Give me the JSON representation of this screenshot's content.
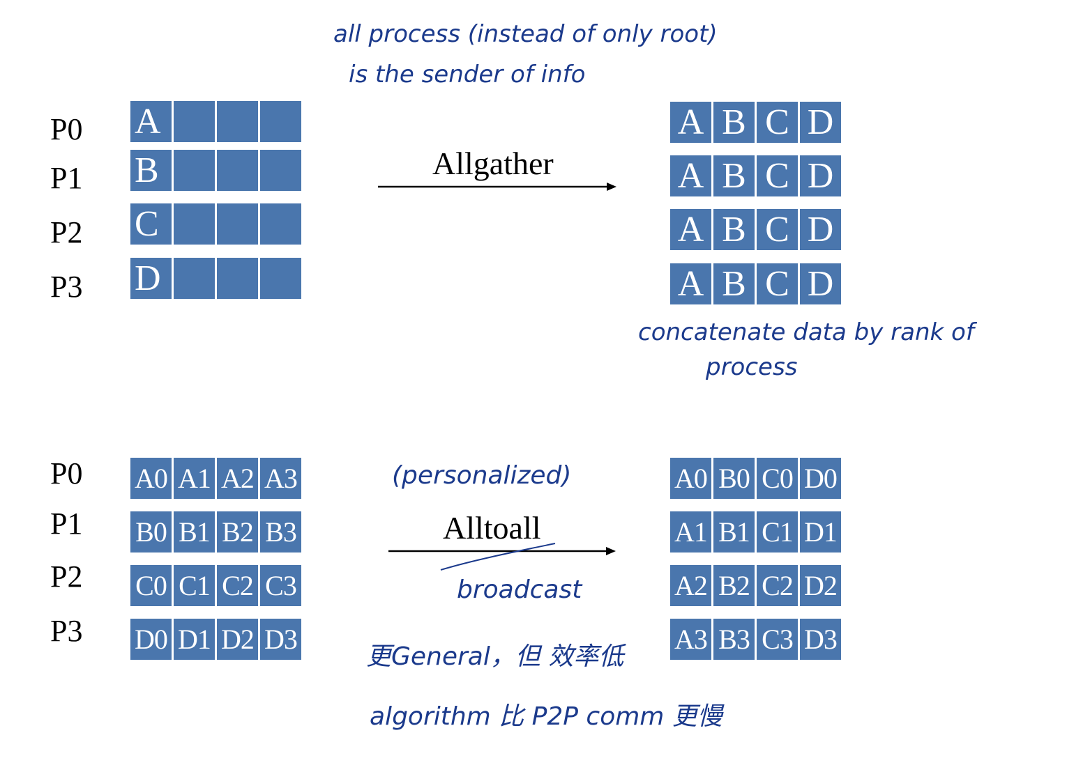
{
  "processes": [
    "P0",
    "P1",
    "P2",
    "P3"
  ],
  "allgather": {
    "label": "Allgather",
    "input": [
      [
        "A",
        "",
        "",
        ""
      ],
      [
        "B",
        "",
        "",
        ""
      ],
      [
        "C",
        "",
        "",
        ""
      ],
      [
        "D",
        "",
        "",
        ""
      ]
    ],
    "output": [
      [
        "A",
        "B",
        "C",
        "D"
      ],
      [
        "A",
        "B",
        "C",
        "D"
      ],
      [
        "A",
        "B",
        "C",
        "D"
      ],
      [
        "A",
        "B",
        "C",
        "D"
      ]
    ]
  },
  "alltoall": {
    "label": "Alltoall",
    "input": [
      [
        "A0",
        "A1",
        "A2",
        "A3"
      ],
      [
        "B0",
        "B1",
        "B2",
        "B3"
      ],
      [
        "C0",
        "C1",
        "C2",
        "C3"
      ],
      [
        "D0",
        "D1",
        "D2",
        "D3"
      ]
    ],
    "output": [
      [
        "A0",
        "B0",
        "C0",
        "D0"
      ],
      [
        "A1",
        "B1",
        "C1",
        "D1"
      ],
      [
        "A2",
        "B2",
        "C2",
        "D2"
      ],
      [
        "A3",
        "B3",
        "C3",
        "D3"
      ]
    ]
  },
  "annotations": {
    "top_line1": "all process (instead of only root)",
    "top_line2": "is the sender of info",
    "concat_line1": "concatenate data by rank of",
    "concat_line2": "process",
    "personalized": "(personalized)",
    "broadcast": "broadcast",
    "general_line1": "更General，但 效率低",
    "general_line2": "algorithm 比 P2P comm 更慢"
  },
  "colors": {
    "cell": "#4a76ad",
    "ink": "#1b3a8c"
  }
}
